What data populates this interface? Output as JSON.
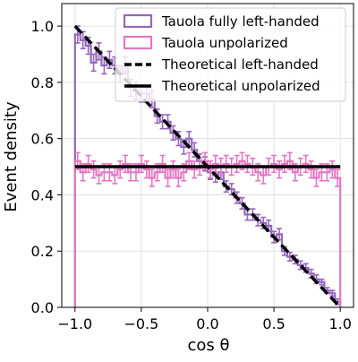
{
  "chart_data": {
    "type": "histogram",
    "xlabel": "cos θ",
    "ylabel": "Event density",
    "xlim": [
      -1.1,
      1.1
    ],
    "ylim": [
      0.0,
      1.08
    ],
    "xticks": [
      -1.0,
      -0.5,
      0.0,
      0.5,
      1.0
    ],
    "xtick_labels": [
      "−1.0",
      "−0.5",
      "0.0",
      "0.5",
      "1.0"
    ],
    "yticks": [
      0.0,
      0.2,
      0.4,
      0.6,
      0.8,
      1.0
    ],
    "ytick_labels": [
      "0.0",
      "0.2",
      "0.4",
      "0.6",
      "0.8",
      "1.0"
    ],
    "grid": true,
    "legend_position": "top-right",
    "bins": {
      "min": -1.0,
      "max": 1.0,
      "count": 50
    },
    "series": [
      {
        "name": "Tauola fully left-handed",
        "kind": "step-histogram",
        "color": "#9467bd",
        "values": [
          0.97,
          0.95,
          0.93,
          0.87,
          0.91,
          0.86,
          0.88,
          0.86,
          0.83,
          0.86,
          0.78,
          0.77,
          0.76,
          0.76,
          0.74,
          0.68,
          0.66,
          0.66,
          0.62,
          0.6,
          0.57,
          0.6,
          0.56,
          0.52,
          0.51,
          0.48,
          0.47,
          0.48,
          0.43,
          0.42,
          0.39,
          0.37,
          0.33,
          0.33,
          0.31,
          0.3,
          0.29,
          0.25,
          0.26,
          0.2,
          0.18,
          0.17,
          0.15,
          0.14,
          0.12,
          0.1,
          0.09,
          0.06,
          0.05,
          0.02
        ],
        "errors": [
          0.03,
          0.03,
          0.03,
          0.03,
          0.03,
          0.03,
          0.03,
          0.03,
          0.03,
          0.03,
          0.03,
          0.03,
          0.03,
          0.03,
          0.03,
          0.025,
          0.025,
          0.025,
          0.025,
          0.025,
          0.025,
          0.025,
          0.025,
          0.025,
          0.025,
          0.025,
          0.025,
          0.025,
          0.02,
          0.02,
          0.02,
          0.02,
          0.02,
          0.02,
          0.02,
          0.02,
          0.02,
          0.02,
          0.02,
          0.015,
          0.015,
          0.015,
          0.015,
          0.015,
          0.015,
          0.015,
          0.01,
          0.01,
          0.01,
          0.01
        ]
      },
      {
        "name": "Tauola unpolarized",
        "kind": "step-histogram",
        "color": "#e377c2",
        "values": [
          0.52,
          0.48,
          0.51,
          0.49,
          0.47,
          0.48,
          0.48,
          0.47,
          0.49,
          0.51,
          0.48,
          0.48,
          0.51,
          0.49,
          0.46,
          0.48,
          0.51,
          0.46,
          0.49,
          0.46,
          0.48,
          0.52,
          0.49,
          0.5,
          0.52,
          0.49,
          0.51,
          0.5,
          0.51,
          0.5,
          0.51,
          0.52,
          0.51,
          0.5,
          0.48,
          0.47,
          0.5,
          0.51,
          0.49,
          0.51,
          0.52,
          0.48,
          0.5,
          0.51,
          0.49,
          0.46,
          0.48,
          0.48,
          0.49,
          0.46
        ],
        "errors": [
          0.03,
          0.03,
          0.03,
          0.03,
          0.03,
          0.03,
          0.03,
          0.03,
          0.03,
          0.03,
          0.03,
          0.03,
          0.03,
          0.03,
          0.03,
          0.03,
          0.03,
          0.03,
          0.03,
          0.03,
          0.03,
          0.03,
          0.03,
          0.03,
          0.03,
          0.03,
          0.03,
          0.03,
          0.03,
          0.03,
          0.03,
          0.03,
          0.03,
          0.03,
          0.03,
          0.03,
          0.03,
          0.03,
          0.03,
          0.03,
          0.03,
          0.03,
          0.03,
          0.03,
          0.03,
          0.03,
          0.03,
          0.03,
          0.03,
          0.03
        ]
      },
      {
        "name": "Theoretical left-handed",
        "kind": "line",
        "style": "dashed",
        "color": "#000000",
        "x": [
          -1.0,
          1.0
        ],
        "y": [
          1.0,
          0.0
        ]
      },
      {
        "name": "Theoretical unpolarized",
        "kind": "line",
        "style": "solid",
        "color": "#000000",
        "x": [
          -1.0,
          1.0
        ],
        "y": [
          0.5,
          0.5
        ]
      }
    ]
  }
}
